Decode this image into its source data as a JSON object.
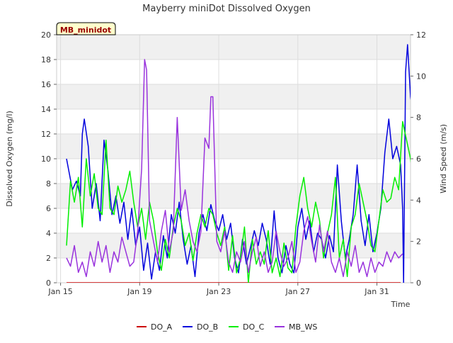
{
  "chart_data": {
    "type": "line",
    "title": "Mayberry miniDot Dissolved Oxygen",
    "station_label": "MB_minidot",
    "xlabel": "Time",
    "ylabel_left": "Dissolved Oxygen (mg/l)",
    "ylabel_right": "Wind Speed (m/s)",
    "x_unit": "days since Jan 15",
    "xlim": [
      -0.2,
      17.7
    ],
    "ylim_left": [
      0,
      20
    ],
    "ylim_right": [
      0,
      12
    ],
    "xticks": [
      {
        "label": "Jan 15",
        "value": 0
      },
      {
        "label": "Jan 19",
        "value": 4
      },
      {
        "label": "Jan 23",
        "value": 8
      },
      {
        "label": "Jan 27",
        "value": 12
      },
      {
        "label": "Jan 31",
        "value": 16
      }
    ],
    "yticks_left": [
      "0",
      "2",
      "4",
      "6",
      "8",
      "10",
      "12",
      "14",
      "16",
      "18",
      "20"
    ],
    "yticks_right": [
      "0",
      "2",
      "4",
      "6",
      "8",
      "10",
      "12"
    ],
    "grid": true,
    "legend_position": "bottom",
    "series": [
      {
        "name": "DO_A",
        "color": "#cc0000",
        "axis": "left",
        "points": [
          [
            0.3,
            0
          ],
          [
            17.2,
            0
          ]
        ]
      },
      {
        "name": "DO_B",
        "color": "#0000dd",
        "axis": "left",
        "points": [
          [
            0.3,
            10.0
          ],
          [
            0.6,
            7.5
          ],
          [
            0.8,
            8.2
          ],
          [
            1.0,
            7.0
          ],
          [
            1.1,
            12.0
          ],
          [
            1.2,
            13.2
          ],
          [
            1.4,
            11.0
          ],
          [
            1.6,
            6.0
          ],
          [
            1.8,
            8.0
          ],
          [
            2.0,
            5.0
          ],
          [
            2.2,
            11.5
          ],
          [
            2.4,
            9.0
          ],
          [
            2.6,
            5.5
          ],
          [
            2.8,
            7.0
          ],
          [
            3.0,
            4.8
          ],
          [
            3.2,
            6.5
          ],
          [
            3.4,
            3.5
          ],
          [
            3.6,
            6.0
          ],
          [
            3.8,
            3.0
          ],
          [
            4.0,
            4.5
          ],
          [
            4.2,
            1.0
          ],
          [
            4.4,
            3.2
          ],
          [
            4.6,
            0.3
          ],
          [
            4.8,
            2.5
          ],
          [
            5.0,
            1.0
          ],
          [
            5.2,
            3.8
          ],
          [
            5.4,
            2.0
          ],
          [
            5.6,
            5.5
          ],
          [
            5.8,
            4.0
          ],
          [
            6.0,
            6.5
          ],
          [
            6.2,
            3.5
          ],
          [
            6.4,
            1.5
          ],
          [
            6.6,
            3.0
          ],
          [
            6.8,
            0.5
          ],
          [
            7.0,
            4.0
          ],
          [
            7.2,
            5.5
          ],
          [
            7.4,
            4.2
          ],
          [
            7.6,
            6.3
          ],
          [
            7.8,
            5.0
          ],
          [
            8.0,
            4.2
          ],
          [
            8.2,
            5.5
          ],
          [
            8.4,
            3.5
          ],
          [
            8.6,
            4.8
          ],
          [
            8.8,
            2.0
          ],
          [
            9.0,
            0.8
          ],
          [
            9.2,
            3.5
          ],
          [
            9.4,
            1.5
          ],
          [
            9.6,
            2.8
          ],
          [
            9.8,
            4.2
          ],
          [
            10.0,
            3.0
          ],
          [
            10.2,
            4.8
          ],
          [
            10.4,
            3.5
          ],
          [
            10.6,
            1.5
          ],
          [
            10.8,
            5.8
          ],
          [
            11.0,
            2.0
          ],
          [
            11.2,
            0.8
          ],
          [
            11.4,
            3.0
          ],
          [
            11.6,
            1.5
          ],
          [
            11.8,
            0.8
          ],
          [
            12.0,
            4.5
          ],
          [
            12.2,
            6.0
          ],
          [
            12.4,
            3.5
          ],
          [
            12.6,
            5.0
          ],
          [
            12.8,
            2.5
          ],
          [
            13.0,
            4.0
          ],
          [
            13.2,
            3.5
          ],
          [
            13.4,
            2.0
          ],
          [
            13.6,
            3.8
          ],
          [
            13.8,
            2.5
          ],
          [
            14.0,
            9.5
          ],
          [
            14.2,
            5.0
          ],
          [
            14.4,
            2.0
          ],
          [
            14.6,
            3.5
          ],
          [
            14.8,
            5.5
          ],
          [
            15.0,
            9.5
          ],
          [
            15.2,
            5.0
          ],
          [
            15.4,
            3.0
          ],
          [
            15.6,
            5.5
          ],
          [
            15.8,
            2.5
          ],
          [
            16.0,
            4.0
          ],
          [
            16.2,
            6.0
          ],
          [
            16.4,
            10.5
          ],
          [
            16.6,
            13.2
          ],
          [
            16.8,
            10.0
          ],
          [
            17.0,
            11.0
          ],
          [
            17.2,
            9.5
          ],
          [
            17.3,
            6.0
          ],
          [
            17.35,
            0.0
          ],
          [
            17.45,
            17.0
          ],
          [
            17.55,
            19.2
          ],
          [
            17.7,
            15.0
          ],
          [
            17.9,
            13.0
          ],
          [
            18.1,
            11.5
          ]
        ]
      },
      {
        "name": "DO_C",
        "color": "#00ee00",
        "axis": "left",
        "points": [
          [
            0.3,
            3.0
          ],
          [
            0.5,
            8.2
          ],
          [
            0.7,
            6.5
          ],
          [
            0.9,
            8.5
          ],
          [
            1.1,
            4.5
          ],
          [
            1.3,
            10.0
          ],
          [
            1.5,
            7.0
          ],
          [
            1.7,
            8.8
          ],
          [
            1.9,
            6.0
          ],
          [
            2.1,
            5.5
          ],
          [
            2.3,
            11.5
          ],
          [
            2.5,
            6.0
          ],
          [
            2.7,
            5.5
          ],
          [
            2.9,
            7.8
          ],
          [
            3.1,
            6.5
          ],
          [
            3.3,
            7.5
          ],
          [
            3.5,
            9.0
          ],
          [
            3.7,
            6.5
          ],
          [
            3.9,
            4.5
          ],
          [
            4.1,
            6.0
          ],
          [
            4.3,
            3.5
          ],
          [
            4.5,
            6.5
          ],
          [
            4.7,
            5.0
          ],
          [
            4.9,
            2.5
          ],
          [
            5.1,
            1.0
          ],
          [
            5.3,
            3.5
          ],
          [
            5.5,
            2.0
          ],
          [
            5.7,
            4.5
          ],
          [
            5.9,
            6.0
          ],
          [
            6.1,
            5.0
          ],
          [
            6.3,
            3.0
          ],
          [
            6.5,
            4.0
          ],
          [
            6.7,
            1.8
          ],
          [
            6.9,
            4.0
          ],
          [
            7.1,
            5.5
          ],
          [
            7.3,
            4.5
          ],
          [
            7.5,
            6.0
          ],
          [
            7.7,
            5.5
          ],
          [
            7.9,
            4.0
          ],
          [
            8.1,
            3.0
          ],
          [
            8.3,
            4.5
          ],
          [
            8.5,
            1.0
          ],
          [
            8.7,
            3.8
          ],
          [
            8.9,
            0.8
          ],
          [
            9.1,
            2.0
          ],
          [
            9.3,
            4.5
          ],
          [
            9.5,
            0.0
          ],
          [
            9.7,
            3.5
          ],
          [
            9.9,
            1.5
          ],
          [
            10.1,
            2.5
          ],
          [
            10.3,
            1.5
          ],
          [
            10.5,
            4.2
          ],
          [
            10.7,
            0.8
          ],
          [
            10.9,
            2.0
          ],
          [
            11.1,
            0.5
          ],
          [
            11.3,
            3.2
          ],
          [
            11.5,
            1.2
          ],
          [
            11.7,
            0.8
          ],
          [
            11.9,
            4.5
          ],
          [
            12.1,
            7.0
          ],
          [
            12.3,
            8.5
          ],
          [
            12.5,
            6.0
          ],
          [
            12.7,
            4.5
          ],
          [
            12.9,
            6.5
          ],
          [
            13.1,
            5.0
          ],
          [
            13.3,
            2.0
          ],
          [
            13.5,
            4.0
          ],
          [
            13.7,
            5.5
          ],
          [
            13.9,
            8.5
          ],
          [
            14.1,
            2.0
          ],
          [
            14.3,
            3.5
          ],
          [
            14.5,
            0.5
          ],
          [
            14.7,
            4.5
          ],
          [
            14.9,
            5.5
          ],
          [
            15.1,
            8.0
          ],
          [
            15.3,
            6.5
          ],
          [
            15.5,
            5.0
          ],
          [
            15.7,
            3.0
          ],
          [
            15.9,
            2.5
          ],
          [
            16.1,
            5.0
          ],
          [
            16.3,
            7.5
          ],
          [
            16.5,
            6.5
          ],
          [
            16.7,
            6.8
          ],
          [
            16.9,
            8.5
          ],
          [
            17.1,
            7.5
          ],
          [
            17.3,
            13.0
          ],
          [
            17.5,
            11.5
          ],
          [
            17.7,
            10.0
          ],
          [
            17.9,
            7.5
          ],
          [
            18.1,
            11.5
          ]
        ]
      },
      {
        "name": "MB_WS",
        "color": "#9933dd",
        "axis": "right",
        "points": [
          [
            0.3,
            1.2
          ],
          [
            0.5,
            0.8
          ],
          [
            0.7,
            1.8
          ],
          [
            0.9,
            0.5
          ],
          [
            1.1,
            1.0
          ],
          [
            1.3,
            0.3
          ],
          [
            1.5,
            1.5
          ],
          [
            1.7,
            0.8
          ],
          [
            1.9,
            2.0
          ],
          [
            2.1,
            1.0
          ],
          [
            2.3,
            1.8
          ],
          [
            2.5,
            0.5
          ],
          [
            2.7,
            1.5
          ],
          [
            2.9,
            1.0
          ],
          [
            3.1,
            2.2
          ],
          [
            3.3,
            1.5
          ],
          [
            3.5,
            0.8
          ],
          [
            3.7,
            1.0
          ],
          [
            3.9,
            2.5
          ],
          [
            4.1,
            5.5
          ],
          [
            4.25,
            10.8
          ],
          [
            4.35,
            10.3
          ],
          [
            4.5,
            3.0
          ],
          [
            4.7,
            2.0
          ],
          [
            4.9,
            1.0
          ],
          [
            5.1,
            2.5
          ],
          [
            5.3,
            3.5
          ],
          [
            5.5,
            1.5
          ],
          [
            5.7,
            2.5
          ],
          [
            5.9,
            8.0
          ],
          [
            6.1,
            3.5
          ],
          [
            6.3,
            4.5
          ],
          [
            6.5,
            3.0
          ],
          [
            6.7,
            2.0
          ],
          [
            6.9,
            1.5
          ],
          [
            7.1,
            2.5
          ],
          [
            7.3,
            7.0
          ],
          [
            7.5,
            6.5
          ],
          [
            7.6,
            9.0
          ],
          [
            7.7,
            9.0
          ],
          [
            7.9,
            2.0
          ],
          [
            8.1,
            1.5
          ],
          [
            8.3,
            2.5
          ],
          [
            8.5,
            1.0
          ],
          [
            8.7,
            0.5
          ],
          [
            8.9,
            1.5
          ],
          [
            9.1,
            1.0
          ],
          [
            9.3,
            2.0
          ],
          [
            9.5,
            0.5
          ],
          [
            9.7,
            1.5
          ],
          [
            9.9,
            2.2
          ],
          [
            10.1,
            0.8
          ],
          [
            10.3,
            1.5
          ],
          [
            10.5,
            0.5
          ],
          [
            10.7,
            1.0
          ],
          [
            10.9,
            2.5
          ],
          [
            11.1,
            1.5
          ],
          [
            11.3,
            0.8
          ],
          [
            11.5,
            1.2
          ],
          [
            11.7,
            2.0
          ],
          [
            11.9,
            0.5
          ],
          [
            12.1,
            1.0
          ],
          [
            12.3,
            2.5
          ],
          [
            12.5,
            3.2
          ],
          [
            12.7,
            2.0
          ],
          [
            12.9,
            1.0
          ],
          [
            13.1,
            2.8
          ],
          [
            13.3,
            1.5
          ],
          [
            13.5,
            2.5
          ],
          [
            13.7,
            1.0
          ],
          [
            13.9,
            0.5
          ],
          [
            14.1,
            1.2
          ],
          [
            14.3,
            0.3
          ],
          [
            14.5,
            1.5
          ],
          [
            14.7,
            0.8
          ],
          [
            14.9,
            1.8
          ],
          [
            15.1,
            0.5
          ],
          [
            15.3,
            1.0
          ],
          [
            15.5,
            0.3
          ],
          [
            15.7,
            1.2
          ],
          [
            15.9,
            0.5
          ],
          [
            16.1,
            1.0
          ],
          [
            16.3,
            0.8
          ],
          [
            16.5,
            1.5
          ],
          [
            16.7,
            1.0
          ],
          [
            16.9,
            1.5
          ],
          [
            17.1,
            1.2
          ],
          [
            17.3,
            1.4
          ]
        ]
      }
    ]
  }
}
